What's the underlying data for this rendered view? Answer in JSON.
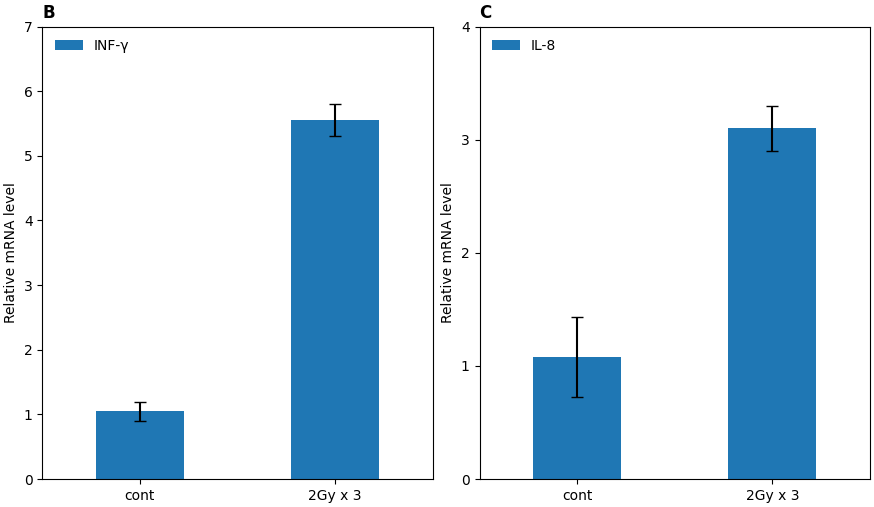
{
  "chart_data": [
    {
      "type": "bar",
      "title": "B",
      "categories": [
        "cont",
        "2Gy x 3"
      ],
      "series": [
        {
          "name": "INF-γ",
          "values": [
            1.05,
            5.55
          ],
          "errors": [
            0.15,
            0.25
          ]
        }
      ],
      "ylabel": "Relative mRNA level",
      "ylim": [
        0,
        7
      ],
      "yticks": [
        0,
        1,
        2,
        3,
        4,
        5,
        6,
        7
      ],
      "legend": "upper left"
    },
    {
      "type": "bar",
      "title": "C",
      "categories": [
        "cont",
        "2Gy x 3"
      ],
      "series": [
        {
          "name": "IL-8",
          "values": [
            1.08,
            3.1
          ],
          "errors": [
            0.35,
            0.2
          ]
        }
      ],
      "ylabel": "Relative mRNA level",
      "ylim": [
        0,
        4
      ],
      "yticks": [
        0,
        1,
        2,
        3,
        4
      ],
      "legend": "upper left"
    }
  ]
}
